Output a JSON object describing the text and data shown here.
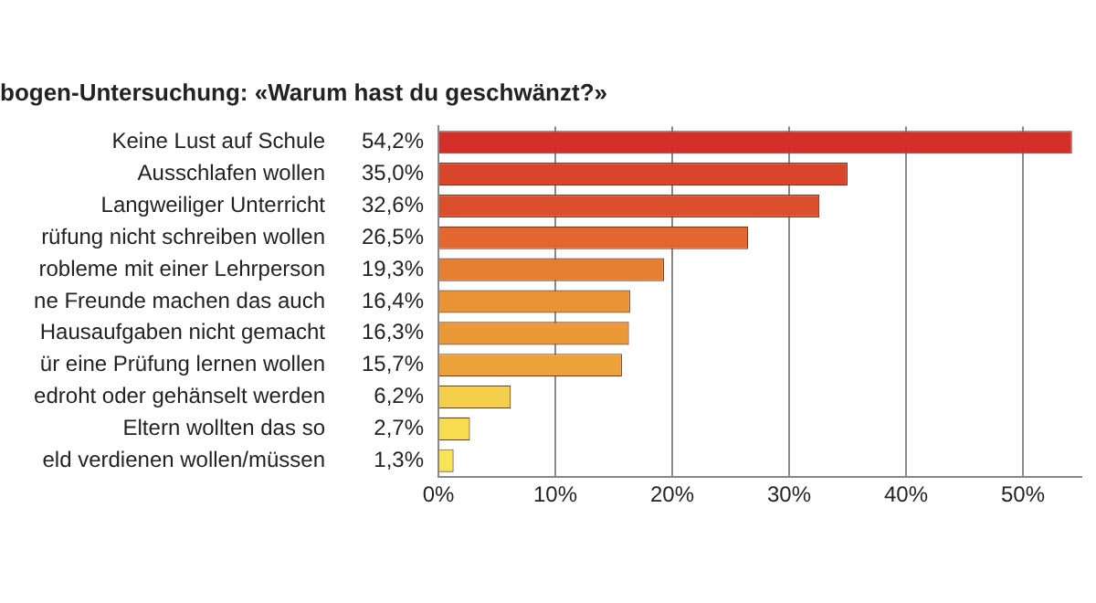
{
  "chart_data": {
    "type": "bar",
    "orientation": "horizontal",
    "title": "bogen-Untersuchung: «Warum hast du geschwänzt?»",
    "categories": [
      "Keine Lust auf Schule",
      "Ausschlafen wollen",
      "Langweiliger Unterricht",
      "rüfung nicht schreiben wollen",
      "robleme mit einer Lehrperson",
      "ne Freunde machen das auch",
      "Hausaufgaben nicht gemacht",
      "ür eine Prüfung lernen wollen",
      "edroht oder gehänselt werden",
      "Eltern wollten das so",
      "eld verdienen wollen/müssen"
    ],
    "values": [
      54.2,
      35.0,
      32.6,
      26.5,
      19.3,
      16.4,
      16.3,
      15.7,
      6.2,
      2.7,
      1.3
    ],
    "value_labels": [
      "54,2%",
      "35,0%",
      "32,6%",
      "26,5%",
      "19,3%",
      "16,4%",
      "16,3%",
      "15,7%",
      "6,2%",
      "2,7%",
      "1,3%"
    ],
    "colors": [
      "#d22f2a",
      "#d9452b",
      "#dc4f2c",
      "#e2662e",
      "#e67f32",
      "#ea9335",
      "#eb9936",
      "#eca238",
      "#f4d04a",
      "#f6dc4f",
      "#f8e553"
    ],
    "xlim": [
      0,
      55
    ],
    "xticks": [
      {
        "value": 0,
        "label": "0%"
      },
      {
        "value": 10,
        "label": "10%"
      },
      {
        "value": 20,
        "label": "20%"
      },
      {
        "value": 30,
        "label": "30%"
      },
      {
        "value": 40,
        "label": "40%"
      },
      {
        "value": 50,
        "label": "50%"
      }
    ],
    "grid": "x"
  }
}
